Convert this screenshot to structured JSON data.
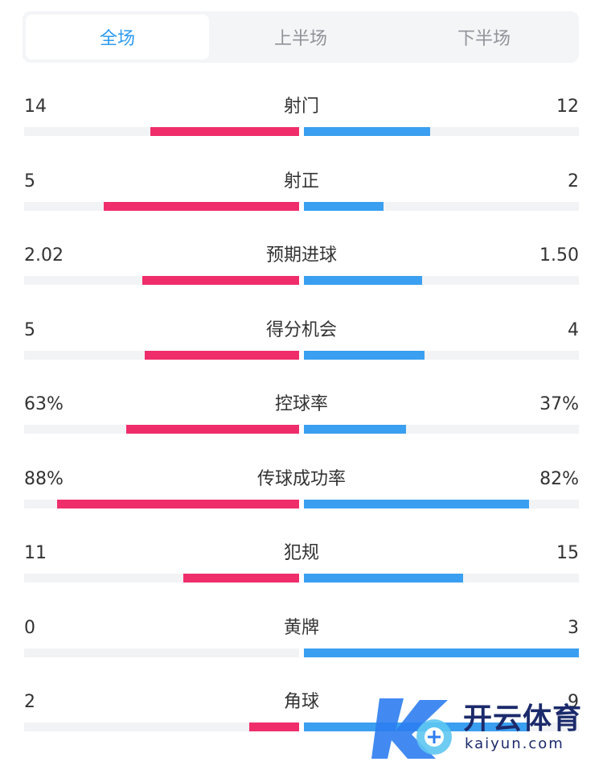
{
  "tabs": [
    {
      "label": "全场",
      "active": true
    },
    {
      "label": "上半场",
      "active": false
    },
    {
      "label": "下半场",
      "active": false
    }
  ],
  "colors": {
    "home": "#ef2d6b",
    "away": "#3a9ff0",
    "active_tab": "#2e9bf0"
  },
  "stats": [
    {
      "label": "射门",
      "home": "14",
      "away": "12",
      "home_pct": 54,
      "away_pct": 46
    },
    {
      "label": "射正",
      "home": "5",
      "away": "2",
      "home_pct": 71,
      "away_pct": 29
    },
    {
      "label": "预期进球",
      "home": "2.02",
      "away": "1.50",
      "home_pct": 57,
      "away_pct": 43
    },
    {
      "label": "得分机会",
      "home": "5",
      "away": "4",
      "home_pct": 56,
      "away_pct": 44
    },
    {
      "label": "控球率",
      "home": "63%",
      "away": "37%",
      "home_pct": 63,
      "away_pct": 37
    },
    {
      "label": "传球成功率",
      "home": "88%",
      "away": "82%",
      "home_pct": 88,
      "away_pct": 82
    },
    {
      "label": "犯规",
      "home": "11",
      "away": "15",
      "home_pct": 42,
      "away_pct": 58
    },
    {
      "label": "黄牌",
      "home": "0",
      "away": "3",
      "home_pct": 0,
      "away_pct": 100
    },
    {
      "label": "角球",
      "home": "2",
      "away": "9",
      "home_pct": 18,
      "away_pct": 82
    }
  ],
  "watermark": {
    "brand": "开云体育",
    "url": "kaiyun.com"
  }
}
